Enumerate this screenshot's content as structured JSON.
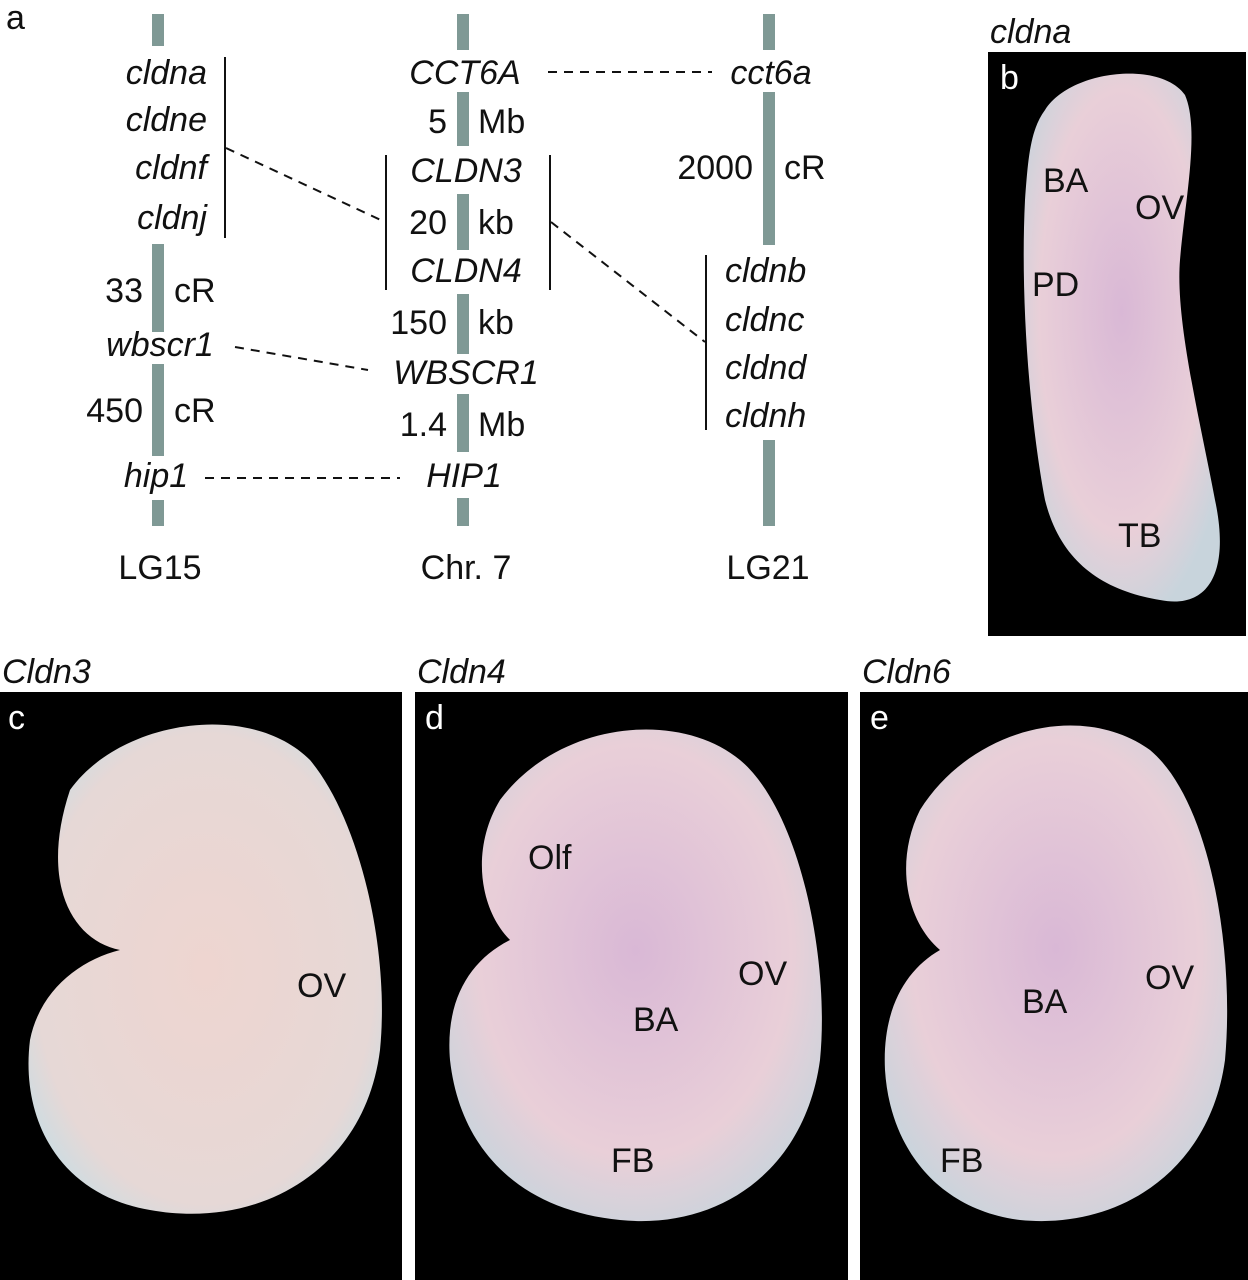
{
  "panel_a": {
    "label": "a",
    "lg15": {
      "cluster": [
        "cldna",
        "cldne",
        "cldnf",
        "cldnj"
      ],
      "dist1": 33,
      "dist1_unit": "cR",
      "gene2": "wbscr1",
      "dist2": 450,
      "dist2_unit": "cR",
      "gene3": "hip1",
      "name": "LG15"
    },
    "chr7": {
      "gene1": "CCT6A",
      "dist1": 5,
      "dist1_unit": "Mb",
      "gene2": "CLDN3",
      "dist2": 20,
      "dist2_unit": "kb",
      "gene3": "CLDN4",
      "dist3": 150,
      "dist3_unit": "kb",
      "gene4": "WBSCR1",
      "dist4": 1.4,
      "dist4_unit": "Mb",
      "gene5": "HIP1",
      "name": "Chr. 7"
    },
    "lg21": {
      "gene1": "cct6a",
      "dist1": 2000,
      "dist1_unit": "cR",
      "cluster": [
        "cldnb",
        "cldnc",
        "cldnd",
        "cldnh"
      ],
      "name": "LG21"
    }
  },
  "panel_b": {
    "title": "cldna",
    "label": "b",
    "annotations": [
      "BA",
      "OV",
      "PD",
      "TB"
    ]
  },
  "panel_c": {
    "title": "Cldn3",
    "label": "c",
    "annotations": [
      "OV"
    ]
  },
  "panel_d": {
    "title": "Cldn4",
    "label": "d",
    "annotations": [
      "Olf",
      "OV",
      "BA",
      "FB"
    ]
  },
  "panel_e": {
    "title": "Cldn6",
    "label": "e",
    "annotations": [
      "BA",
      "OV",
      "FB"
    ]
  }
}
